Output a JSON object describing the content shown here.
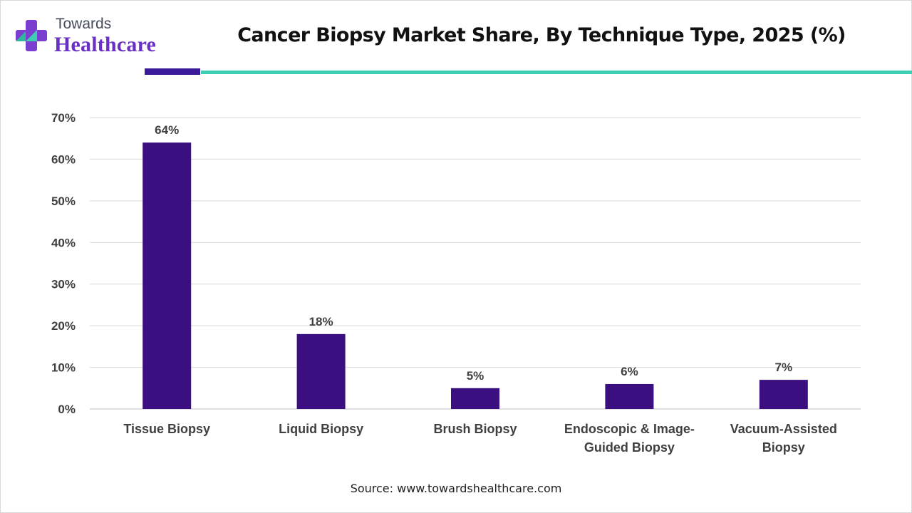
{
  "brand": {
    "top": "Towards",
    "bottom": "Healthcare",
    "logo_icon": "cross-mark-icon",
    "colors": {
      "purple": "#6a2fc4",
      "teal": "#3ccfb2",
      "dark_purple": "#3a1a99"
    }
  },
  "source": "Source: www.towardshealthcare.com",
  "chart_data": {
    "type": "bar",
    "title": "Cancer Biopsy Market Share, By Technique Type, 2025 (%)",
    "categories": [
      [
        "Tissue Biopsy"
      ],
      [
        "Liquid Biopsy"
      ],
      [
        "Brush Biopsy"
      ],
      [
        "Endoscopic & Image-",
        "Guided Biopsy"
      ],
      [
        "Vacuum-Assisted",
        "Biopsy"
      ]
    ],
    "values": [
      64,
      18,
      5,
      6,
      7
    ],
    "data_labels": [
      "64%",
      "18%",
      "5%",
      "6%",
      "7%"
    ],
    "ylim": [
      0,
      70
    ],
    "yticks": [
      0,
      10,
      20,
      30,
      40,
      50,
      60,
      70
    ],
    "ytick_labels": [
      "0%",
      "10%",
      "20%",
      "30%",
      "40%",
      "50%",
      "60%",
      "70%"
    ],
    "xlabel": "",
    "ylabel": "",
    "grid": true,
    "legend": "none",
    "bar_color": "#3b0f80"
  }
}
